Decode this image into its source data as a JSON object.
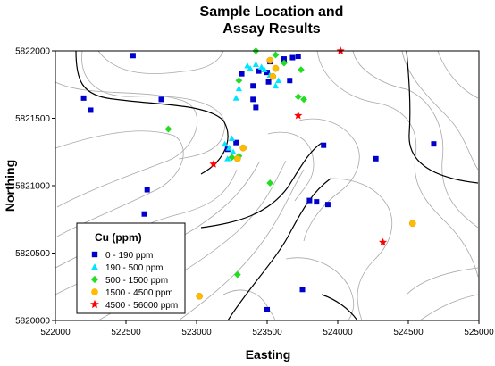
{
  "chart_data": {
    "type": "scatter",
    "title_lines": [
      "Sample Location and",
      "Assay Results"
    ],
    "xlabel": "Easting",
    "ylabel": "Northing",
    "xlim": [
      522000,
      525000
    ],
    "ylim": [
      5820000,
      5822000
    ],
    "x_ticks": [
      522000,
      522500,
      523000,
      523500,
      524000,
      524500,
      525000
    ],
    "y_ticks": [
      5820000,
      5820500,
      5821000,
      5821500,
      5822000
    ],
    "x_tick_labels": [
      "522000",
      "522500",
      "523000",
      "523500",
      "524000",
      "524500",
      "525000"
    ],
    "y_tick_labels": [
      "5820000",
      "5820500",
      "5821000",
      "5821500",
      "5822000"
    ],
    "legend": {
      "title": "Cu (ppm)",
      "placement": "bottom-left"
    },
    "series": [
      {
        "name": "0 - 190 ppm",
        "marker": "square",
        "color": "#0000cc",
        "points": [
          [
            522550,
            5821965
          ],
          [
            522200,
            5821650
          ],
          [
            522250,
            5821560
          ],
          [
            522750,
            5821640
          ],
          [
            523320,
            5821830
          ],
          [
            523400,
            5821740
          ],
          [
            523440,
            5821850
          ],
          [
            523500,
            5821840
          ],
          [
            523510,
            5821770
          ],
          [
            523520,
            5821920
          ],
          [
            523620,
            5821940
          ],
          [
            523660,
            5821780
          ],
          [
            523680,
            5821950
          ],
          [
            523720,
            5821960
          ],
          [
            523400,
            5821640
          ],
          [
            523420,
            5821580
          ],
          [
            523280,
            5821320
          ],
          [
            523220,
            5821270
          ],
          [
            523900,
            5821300
          ],
          [
            524270,
            5821200
          ],
          [
            524680,
            5821310
          ],
          [
            523800,
            5820890
          ],
          [
            523850,
            5820880
          ],
          [
            523930,
            5820860
          ],
          [
            522650,
            5820970
          ],
          [
            522630,
            5820790
          ],
          [
            523750,
            5820230
          ],
          [
            523500,
            5820080
          ]
        ]
      },
      {
        "name": "190 - 500 ppm",
        "marker": "triangle",
        "color": "#00e5ff",
        "points": [
          [
            523360,
            5821890
          ],
          [
            523380,
            5821870
          ],
          [
            523420,
            5821900
          ],
          [
            523460,
            5821880
          ],
          [
            523480,
            5821860
          ],
          [
            523520,
            5821820
          ],
          [
            523560,
            5821740
          ],
          [
            523580,
            5821780
          ],
          [
            523300,
            5821720
          ],
          [
            523280,
            5821650
          ],
          [
            523200,
            5821310
          ],
          [
            523230,
            5821280
          ],
          [
            523260,
            5821250
          ],
          [
            523250,
            5821350
          ],
          [
            523220,
            5821200
          ]
        ]
      },
      {
        "name": "500 - 1500 ppm",
        "marker": "diamond",
        "color": "#22dd22",
        "points": [
          [
            523420,
            5822000
          ],
          [
            523560,
            5821970
          ],
          [
            523620,
            5821910
          ],
          [
            523740,
            5821860
          ],
          [
            523300,
            5821780
          ],
          [
            523720,
            5821660
          ],
          [
            523760,
            5821640
          ],
          [
            522800,
            5821420
          ],
          [
            523300,
            5821220
          ],
          [
            523250,
            5821210
          ],
          [
            523520,
            5821020
          ],
          [
            523290,
            5820340
          ]
        ]
      },
      {
        "name": "1500 - 4500 ppm",
        "marker": "circle",
        "color": "#ffbb00",
        "points": [
          [
            523520,
            5821930
          ],
          [
            523560,
            5821870
          ],
          [
            523540,
            5821810
          ],
          [
            523330,
            5821280
          ],
          [
            523290,
            5821200
          ],
          [
            524530,
            5820720
          ],
          [
            523020,
            5820180
          ]
        ]
      },
      {
        "name": "4500 - 56000 ppm",
        "marker": "star",
        "color": "#ff0000",
        "points": [
          [
            524020,
            5822000
          ],
          [
            523720,
            5821520
          ],
          [
            523120,
            5821160
          ],
          [
            524320,
            5820580
          ]
        ]
      }
    ]
  }
}
